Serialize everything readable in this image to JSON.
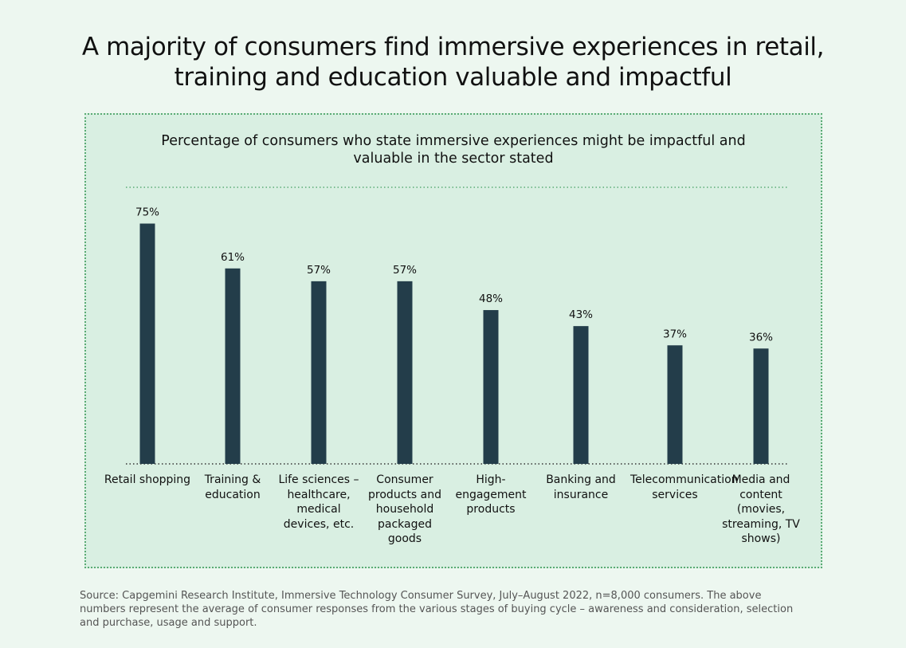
{
  "headline": "A majority of consumers find immersive experiences in retail, training and education valuable and impactful",
  "source_note": "Source: Capgemini Research Institute, Immersive Technology Consumer Survey, July–August 2022, n=8,000 consumers. The above numbers represent the average of consumer responses from the various stages of buying cycle – awareness and consideration, selection and purchase, usage and support.",
  "colors": {
    "bar": "#233d4a",
    "panel": "#d9efe2",
    "border": "#5aab74",
    "page": "#edf7f0"
  },
  "chart_data": {
    "type": "bar",
    "title": "Percentage of consumers who state immersive experiences might be impactful and valuable in the sector stated",
    "categories": [
      "Retail shopping",
      "Training & education",
      "Life sciences – healthcare, medical devices, etc.",
      "Consumer products and household packaged goods",
      "High-engagement products",
      "Banking and insurance",
      "Telecommunication services",
      "Media and content (movies, streaming, TV shows)"
    ],
    "values": [
      75,
      61,
      57,
      57,
      48,
      43,
      37,
      36
    ],
    "value_labels": [
      "75%",
      "61%",
      "57%",
      "57%",
      "48%",
      "43%",
      "37%",
      "36%"
    ],
    "unit": "%",
    "ylim": [
      0,
      80
    ],
    "grid": false
  }
}
